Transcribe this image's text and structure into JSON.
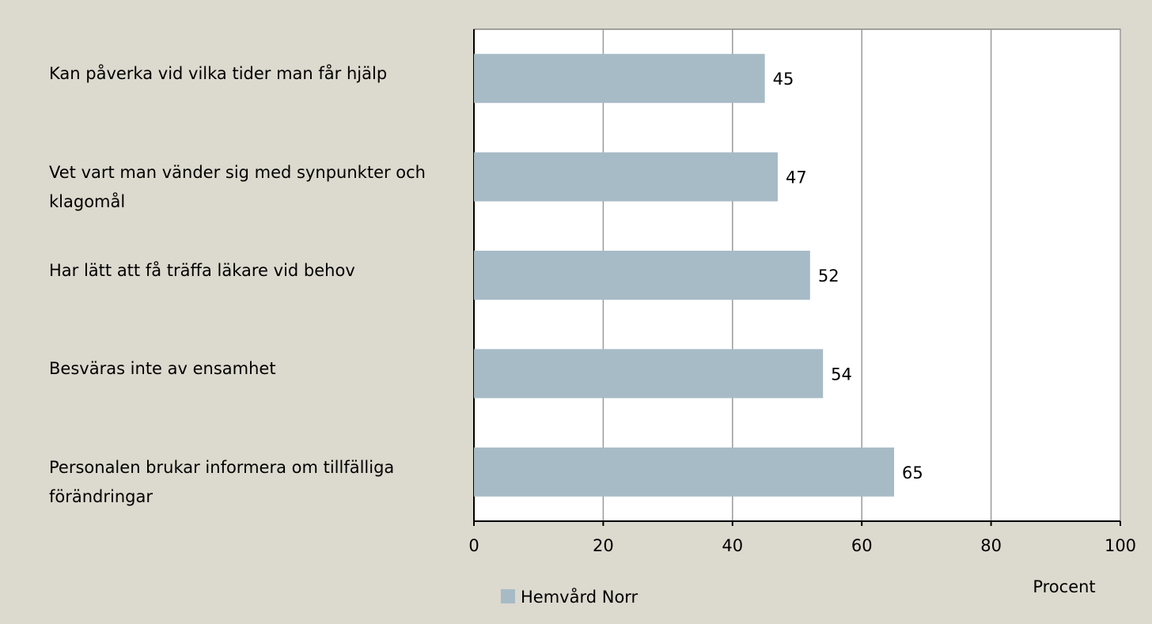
{
  "chart_data": {
    "type": "bar",
    "orientation": "horizontal",
    "categories": [
      "Kan påverka vid vilka tider man får hjälp",
      "Vet vart man vänder sig med synpunkter och klagomål",
      "Har lätt att få träffa läkare vid behov",
      "Besväras inte av ensamhet",
      "Personalen brukar informera om tillfälliga förändringar"
    ],
    "series": [
      {
        "name": "Hemvård Norr",
        "color": "#a7bbc6",
        "values": [
          45,
          47,
          52,
          54,
          65
        ]
      }
    ],
    "xlabel": "Procent",
    "xlim": [
      0,
      100
    ],
    "xticks": [
      0,
      20,
      40,
      60,
      80,
      100
    ],
    "grid": true,
    "legend": "bottom"
  }
}
